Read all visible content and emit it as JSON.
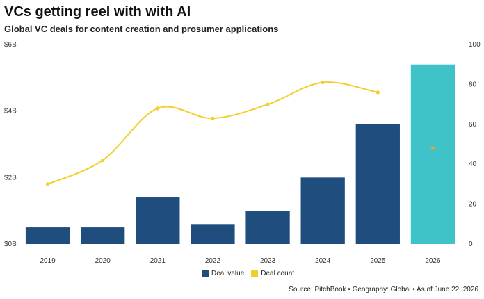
{
  "colors": {
    "deal_value": "#1f4e7e",
    "deal_value_highlight": "#3fc2c8",
    "deal_count": "#f2cf2a",
    "deal_count_highlight_marker": "#e8a33c"
  },
  "chart_data": {
    "type": "bar",
    "title": "VCs getting reel with with AI",
    "subtitle": "Global VC deals for content creation and prosumer applications",
    "categories": [
      "2019",
      "2020",
      "2021",
      "2022",
      "2023",
      "2024",
      "2025",
      "2026"
    ],
    "series": [
      {
        "name": "Deal value",
        "type": "bar",
        "axis": "left",
        "values": [
          0.5,
          0.5,
          1.4,
          0.6,
          1.0,
          2.0,
          3.6,
          5.4
        ],
        "highlight_index": 7
      },
      {
        "name": "Deal count",
        "type": "line",
        "axis": "right",
        "values": [
          30,
          42,
          68,
          63,
          70,
          81,
          76,
          48
        ],
        "line_through_index": 6,
        "smooth": true
      }
    ],
    "y_left": {
      "ylim": [
        0,
        6
      ],
      "ticks": [
        "$0B",
        "$2B",
        "$4B",
        "$6B"
      ]
    },
    "y_right": {
      "ylim": [
        0,
        100
      ],
      "ticks": [
        "0",
        "20",
        "40",
        "60",
        "80",
        "100"
      ]
    },
    "grid": false,
    "legend": "bottom-center"
  },
  "source": "Source: PitchBook • Geography: Global • As of June 22, 2026"
}
